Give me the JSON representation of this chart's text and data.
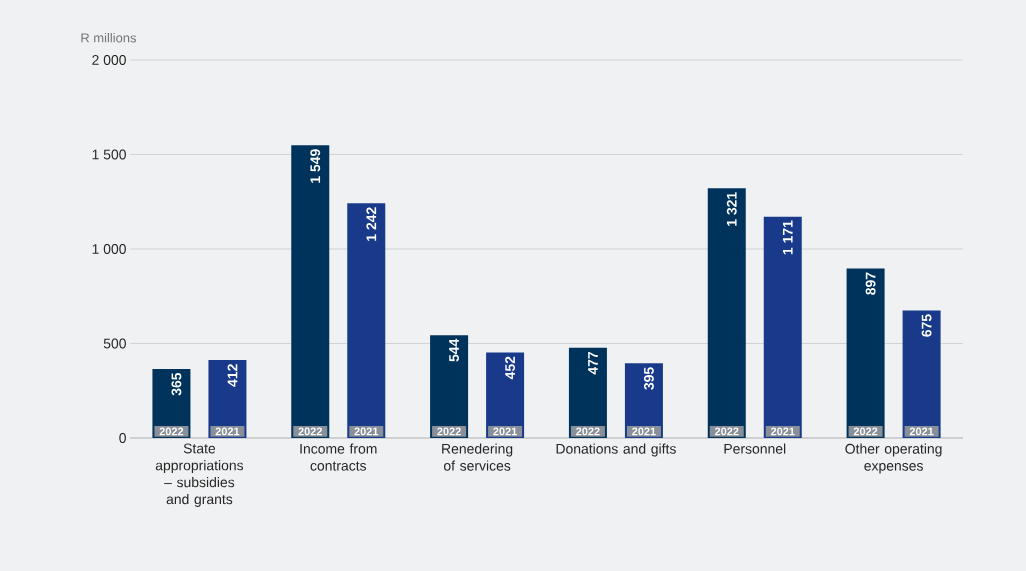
{
  "chart_data": {
    "type": "bar",
    "ylabel": "R millions",
    "categories": [
      "State appropriations – subsidies and grants",
      "Income from contracts",
      "Renedering of services",
      "Donations and gifts",
      "Personnel",
      "Other operating expenses"
    ],
    "series": [
      {
        "name": "2022",
        "color": "#00335c",
        "values": [
          365,
          1549,
          544,
          477,
          1321,
          897
        ],
        "value_labels": [
          "365",
          "1 549",
          "544",
          "477",
          "1 321",
          "897"
        ]
      },
      {
        "name": "2021",
        "color": "#193a8a",
        "values": [
          412,
          1242,
          452,
          395,
          1171,
          675
        ],
        "value_labels": [
          "412",
          "1 242",
          "452",
          "395",
          "1 171",
          "675"
        ]
      }
    ],
    "ylim": [
      0,
      2000
    ],
    "yticks": [
      0,
      500,
      {
        "value": 1000,
        "label": "1 000"
      },
      {
        "value": 1500,
        "label": "1 500"
      },
      {
        "value": 2000,
        "label": "2 000"
      }
    ],
    "grid": "y",
    "legend": false
  }
}
